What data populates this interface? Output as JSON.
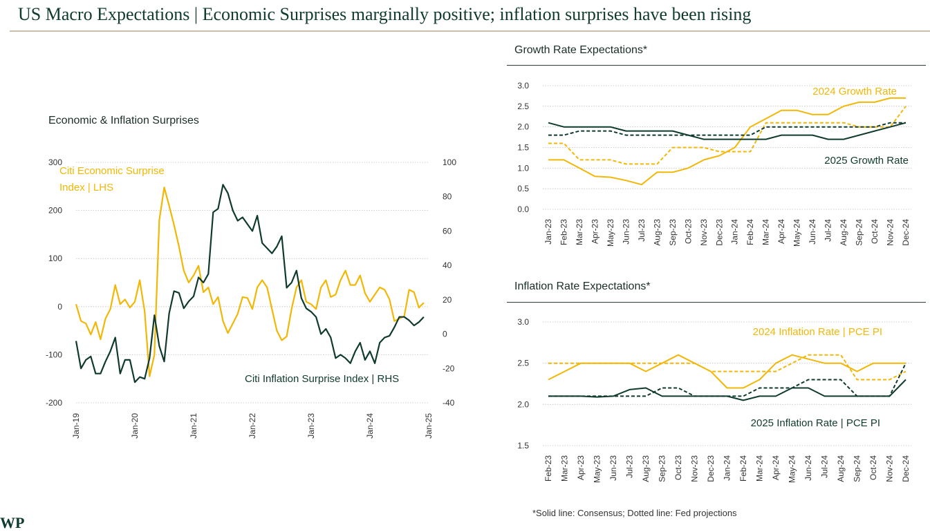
{
  "page": {
    "title": "US Macro Expectations | Economic Surprises marginally positive; inflation surprises have been rising",
    "footnote": "*Solid line: Consensus; Dotted line: Fed projections",
    "logo_text": "WP"
  },
  "colors": {
    "gold": "#F2B705",
    "dark": "#0F3A2E",
    "grid": "#bdbdbd",
    "axis": "#555555"
  },
  "chart_data": [
    {
      "id": "surprises",
      "type": "line",
      "title": "Economic & Inflation Surprises",
      "x_labels": [
        "Jan-19",
        "Jan-20",
        "Jan-21",
        "Jan-22",
        "Jan-23",
        "Jan-24",
        "Jan-25"
      ],
      "x_range": [
        0,
        72
      ],
      "ylim_left": [
        -200,
        300
      ],
      "yticks_left": [
        "300",
        "200",
        "100",
        "0",
        "-100",
        "-200"
      ],
      "ylim_right": [
        -40,
        100
      ],
      "yticks_right": [
        "100",
        "80",
        "60",
        "40",
        "20",
        "0",
        "-20",
        "-40"
      ],
      "series": [
        {
          "name": "Citi Economic Surprise Index | LHS",
          "label_lines": [
            "Citi Economic Surprise",
            "Index | LHS"
          ],
          "axis": "left",
          "color": "#F2B705",
          "values": [
            5,
            -30,
            -35,
            -58,
            -32,
            -68,
            -25,
            -5,
            45,
            5,
            15,
            -2,
            10,
            55,
            -10,
            -145,
            -100,
            180,
            248,
            210,
            170,
            125,
            75,
            50,
            65,
            85,
            30,
            40,
            5,
            20,
            -30,
            -55,
            -35,
            -15,
            20,
            18,
            -5,
            40,
            55,
            40,
            -5,
            -50,
            -70,
            -62,
            -5,
            40,
            55,
            10,
            5,
            -5,
            40,
            55,
            20,
            25,
            55,
            75,
            45,
            45,
            65,
            28,
            10,
            25,
            40,
            35,
            15,
            -30,
            -25,
            -20,
            35,
            30,
            -2,
            8
          ],
          "dashed": false
        },
        {
          "name": "Citi Inflation Surprise Index | RHS",
          "axis": "right",
          "color": "#0F3A2E",
          "values": [
            -4,
            -20,
            -15,
            -13,
            -23,
            -23,
            -16,
            -10,
            -2,
            -23,
            -15,
            -15,
            -28,
            -25,
            -26,
            -14,
            11,
            -7,
            -16,
            12,
            25,
            24,
            15,
            19,
            22,
            33,
            30,
            35,
            71,
            73,
            87,
            82,
            72,
            66,
            68,
            64,
            60,
            69,
            53,
            50,
            47,
            51,
            57,
            27,
            30,
            37,
            21,
            15,
            13,
            10,
            0,
            3,
            -2,
            -14,
            -12,
            -14,
            -17,
            -10,
            -5,
            -15,
            -10,
            -17,
            -5,
            -2,
            -1,
            4,
            10,
            10,
            8,
            5,
            7,
            10
          ],
          "dashed": false
        }
      ]
    },
    {
      "id": "growth",
      "type": "line",
      "title": "Growth Rate Expectations*",
      "categories": [
        "Jan-23",
        "Feb-23",
        "Mar-23",
        "Apr-23",
        "May-23",
        "Jun-23",
        "Jul-23",
        "Aug-23",
        "Sep-23",
        "Oct-23",
        "Nov-23",
        "Dec-23",
        "Jan-24",
        "Feb-24",
        "Mar-24",
        "Apr-24",
        "May-24",
        "Jun-24",
        "Jul-24",
        "Aug-24",
        "Sep-24",
        "Oct-24",
        "Nov-24",
        "Dec-24"
      ],
      "ylim": [
        0,
        3
      ],
      "yticks": [
        "3.0",
        "2.5",
        "2.0",
        "1.5",
        "1.0",
        "0.5",
        "0.0"
      ],
      "series": [
        {
          "name": "2024 Growth Rate",
          "color": "#F2B705",
          "dashed": false,
          "values": [
            1.2,
            1.2,
            1.0,
            0.8,
            0.78,
            0.7,
            0.6,
            0.9,
            0.9,
            1.0,
            1.2,
            1.3,
            1.5,
            2.0,
            2.2,
            2.4,
            2.4,
            2.3,
            2.3,
            2.5,
            2.6,
            2.6,
            2.7,
            2.7
          ]
        },
        {
          "name": "2024 Growth Rate (Fed)",
          "color": "#F2B705",
          "dashed": true,
          "values": [
            1.6,
            1.6,
            1.2,
            1.2,
            1.2,
            1.1,
            1.1,
            1.1,
            1.5,
            1.5,
            1.5,
            1.4,
            1.4,
            1.4,
            2.1,
            2.1,
            2.1,
            2.1,
            2.1,
            2.1,
            2.0,
            2.0,
            2.0,
            2.5
          ]
        },
        {
          "name": "2025 Growth Rate",
          "color": "#0F3A2E",
          "dashed": false,
          "values": [
            2.1,
            2.0,
            2.0,
            2.0,
            2.0,
            1.9,
            1.9,
            1.9,
            1.9,
            1.8,
            1.7,
            1.7,
            1.7,
            1.7,
            1.7,
            1.8,
            1.8,
            1.8,
            1.7,
            1.7,
            1.8,
            1.9,
            2.0,
            2.1
          ]
        },
        {
          "name": "2025 Growth Rate (Fed)",
          "color": "#0F3A2E",
          "dashed": true,
          "values": [
            1.8,
            1.8,
            1.9,
            1.9,
            1.9,
            1.8,
            1.8,
            1.8,
            1.8,
            1.8,
            1.8,
            1.8,
            1.8,
            1.8,
            2.0,
            2.0,
            2.0,
            2.0,
            2.0,
            2.0,
            2.0,
            2.0,
            2.1,
            2.1
          ]
        }
      ],
      "labels": {
        "s2024": "2024 Growth Rate",
        "s2025": "2025 Growth Rate"
      }
    },
    {
      "id": "inflation",
      "type": "line",
      "title": "Inflation Rate Expectations*",
      "categories": [
        "Feb-23",
        "Mar-23",
        "Apr-23",
        "May-23",
        "Jun-23",
        "Jul-23",
        "Aug-23",
        "Sep-23",
        "Oct-23",
        "Nov-23",
        "Dec-23",
        "Jan-24",
        "Feb-24",
        "Mar-24",
        "Apr-24",
        "May-24",
        "Jun-24",
        "Jul-24",
        "Aug-24",
        "Sep-24",
        "Oct-24",
        "Nov-24",
        "Dec-24"
      ],
      "ylim": [
        1.5,
        3.0
      ],
      "yticks": [
        "3.0",
        "2.5",
        "2.0",
        "1.5"
      ],
      "series": [
        {
          "name": "2024 Inflation Rate | PCE PI",
          "color": "#F2B705",
          "dashed": false,
          "values": [
            2.3,
            2.4,
            2.5,
            2.5,
            2.5,
            2.5,
            2.4,
            2.5,
            2.6,
            2.5,
            2.4,
            2.2,
            2.2,
            2.3,
            2.5,
            2.6,
            2.55,
            2.5,
            2.5,
            2.4,
            2.5,
            2.5,
            2.5
          ]
        },
        {
          "name": "2024 Inflation Rate (Fed)",
          "color": "#F2B705",
          "dashed": true,
          "values": [
            2.5,
            2.5,
            2.5,
            2.5,
            2.5,
            2.5,
            2.5,
            2.5,
            2.5,
            2.5,
            2.4,
            2.4,
            2.4,
            2.4,
            2.4,
            2.5,
            2.6,
            2.6,
            2.6,
            2.3,
            2.3,
            2.3,
            2.4
          ]
        },
        {
          "name": "2025 Inflation Rate | PCE PI",
          "color": "#0F3A2E",
          "dashed": false,
          "values": [
            2.1,
            2.1,
            2.1,
            2.09,
            2.1,
            2.18,
            2.2,
            2.1,
            2.1,
            2.1,
            2.1,
            2.1,
            2.05,
            2.1,
            2.1,
            2.2,
            2.2,
            2.1,
            2.1,
            2.1,
            2.1,
            2.1,
            2.3
          ]
        },
        {
          "name": "2025 Inflation Rate (Fed)",
          "color": "#0F3A2E",
          "dashed": true,
          "values": [
            2.1,
            2.1,
            2.1,
            2.1,
            2.1,
            2.1,
            2.1,
            2.2,
            2.2,
            2.1,
            2.1,
            2.1,
            2.1,
            2.2,
            2.2,
            2.2,
            2.3,
            2.3,
            2.3,
            2.1,
            2.1,
            2.1,
            2.5
          ]
        }
      ],
      "labels": {
        "s2024": "2024 Inflation Rate | PCE PI",
        "s2025": "2025 Inflation Rate | PCE PI"
      }
    }
  ]
}
